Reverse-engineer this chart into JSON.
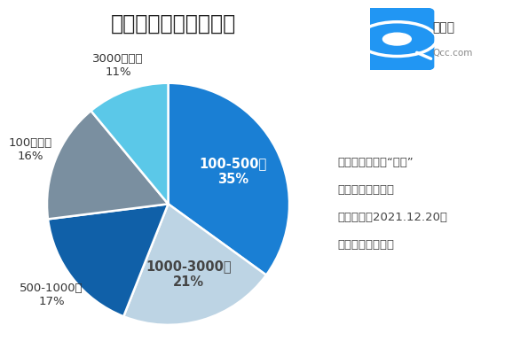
{
  "title": "光伏企业注册资本分布",
  "slices": [
    {
      "pct": 35,
      "color": "#1A7FD4",
      "text_label": "100-500万",
      "pct_str": "35%",
      "outside": false
    },
    {
      "pct": 21,
      "color": "#BDD4E4",
      "text_label": "1000-3000万",
      "pct_str": "21%",
      "outside": false
    },
    {
      "pct": 17,
      "color": "#1060A8",
      "text_label": "500-1000万",
      "pct_str": "17%",
      "outside": true
    },
    {
      "pct": 16,
      "color": "#7A8FA0",
      "text_label": "100万以内",
      "pct_str": "16%",
      "outside": true
    },
    {
      "pct": 11,
      "color": "#5BC8E8",
      "text_label": "3000万以上",
      "pct_str": "11%",
      "outside": true
    }
  ],
  "note_lines": [
    "仅统计关键词为“光伏”",
    "的相关企业数量；",
    "数据截至：2021.12.20；",
    "数据来源：企查查"
  ],
  "note_fontsize": 9.5,
  "title_fontsize": 17,
  "bg_color": "#FFFFFF",
  "start_angle": 90,
  "label_fontsize": 9.5,
  "inside_label_fontsize": 10.5
}
